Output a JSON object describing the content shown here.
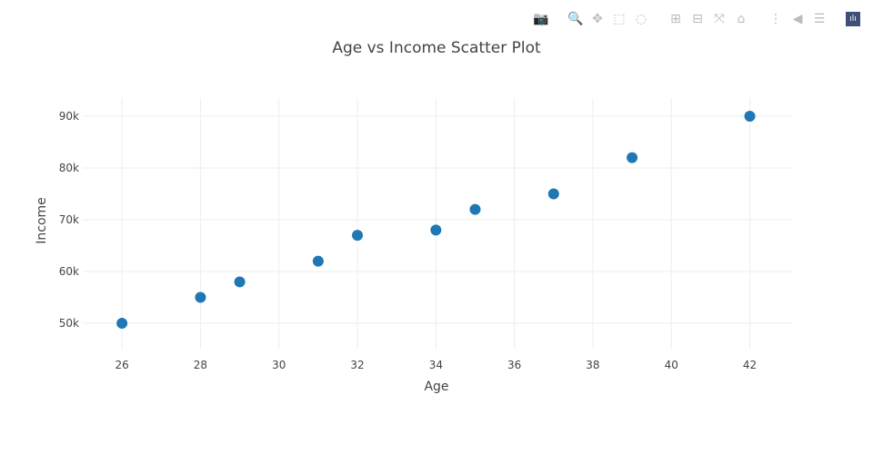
{
  "modebar": {
    "buttons": [
      {
        "name": "camera-icon",
        "glyph": "📷"
      },
      {
        "name": "zoom-icon",
        "glyph": "🔍",
        "active": true
      },
      {
        "name": "pan-icon",
        "glyph": "✥"
      },
      {
        "name": "box-select-icon",
        "glyph": "⬚"
      },
      {
        "name": "lasso-select-icon",
        "glyph": "◌"
      },
      {
        "name": "zoom-in-icon",
        "glyph": "⊞"
      },
      {
        "name": "zoom-out-icon",
        "glyph": "⊟"
      },
      {
        "name": "autoscale-icon",
        "glyph": "⤧"
      },
      {
        "name": "reset-axes-icon",
        "glyph": "⌂"
      },
      {
        "name": "spike-lines-icon",
        "glyph": "⋮"
      },
      {
        "name": "hover-closest-icon",
        "glyph": "◀"
      },
      {
        "name": "hover-compare-icon",
        "glyph": "☰"
      }
    ]
  },
  "chart_data": {
    "type": "scatter",
    "title": "Age vs Income Scatter Plot",
    "xlabel": "Age",
    "ylabel": "Income",
    "x": [
      26,
      28,
      29,
      31,
      32,
      34,
      35,
      37,
      39,
      42
    ],
    "y": [
      50000,
      55000,
      58000,
      62000,
      67000,
      68000,
      72000,
      75000,
      82000,
      90000
    ],
    "xlim": [
      25.0,
      43.1
    ],
    "ylim": [
      45100,
      93500
    ],
    "xticks": [
      26,
      28,
      30,
      32,
      34,
      36,
      38,
      40,
      42
    ],
    "yticks": [
      50000,
      60000,
      70000,
      80000,
      90000
    ],
    "yticklabels": [
      "50k",
      "60k",
      "70k",
      "80k",
      "90k"
    ],
    "grid": true,
    "marker_color": "#1f77b4",
    "grid_color": "#eeeeee"
  }
}
